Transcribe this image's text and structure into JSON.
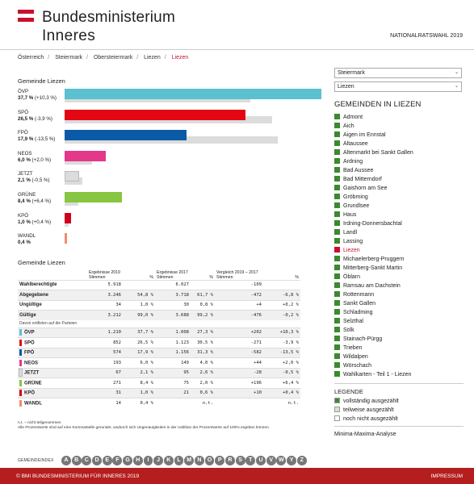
{
  "header": {
    "title_line1": "Bundesministerium",
    "title_line2": "Inneres",
    "election": "NATIONALRATSWAHL 2019",
    "brand_color": "#c8102e"
  },
  "breadcrumb": [
    "Österreich",
    "Steiermark",
    "Obersteiermark",
    "Liezen",
    "Liezen"
  ],
  "left_title": "Gemeinde Liezen",
  "chart_data": {
    "type": "bar",
    "orientation": "horizontal",
    "title": "Gemeinde Liezen",
    "xlim": [
      0,
      37.7
    ],
    "series": [
      {
        "name": "2019",
        "values": [
          37.7,
          26.5,
          17.9,
          6.0,
          2.1,
          8.4,
          1.0,
          0.4
        ]
      },
      {
        "name": "2017",
        "values": [
          27.3,
          30.5,
          31.3,
          4.0,
          2.6,
          2.0,
          0.6,
          0
        ]
      }
    ],
    "categories": [
      "ÖVP",
      "SPÖ",
      "FPÖ",
      "NEOS",
      "JETZT",
      "GRÜNE",
      "KPÖ",
      "WANDL"
    ],
    "labels": [
      {
        "pct": "37,7 %",
        "diff": "(+10,3 %)"
      },
      {
        "pct": "26,5 %",
        "diff": "(-3,9 %)"
      },
      {
        "pct": "17,9 %",
        "diff": "(-13,5 %)"
      },
      {
        "pct": "6,0 %",
        "diff": "(+2,0 %)"
      },
      {
        "pct": "2,1 %",
        "diff": "(-0,5 %)"
      },
      {
        "pct": "8,4 %",
        "diff": "(+6,4 %)"
      },
      {
        "pct": "1,0 %",
        "diff": "(+0,4 %)"
      },
      {
        "pct": "0,4 %",
        "diff": ""
      }
    ],
    "colors": [
      "#5bc0cf",
      "#e30613",
      "#0a5aa8",
      "#e4388a",
      "#dcdcdc",
      "#88c540",
      "#d0021b",
      "#f08a6c"
    ]
  },
  "table": {
    "title": "Gemeinde Liezen",
    "headers": {
      "e2019": "Ergebnisse 2019",
      "e2017": "Ergebnisse 2017",
      "cmp": "Vergleich 2019 – 2017",
      "stimmen": "Stimmen",
      "pct": "%"
    },
    "summary_rows": [
      {
        "label": "Wahlberechtigte",
        "s19": "5.918",
        "p19": "",
        "s17": "6.027",
        "p17": "",
        "ds": "-109",
        "dp": ""
      },
      {
        "label": "Abgegebene",
        "s19": "3.246",
        "p19": "54,8 %",
        "s17": "3.718",
        "p17": "61,7 %",
        "ds": "-472",
        "dp": "-6,8 %"
      },
      {
        "label": "Ungültige",
        "s19": "34",
        "p19": "1,0 %",
        "s17": "30",
        "p17": "0,8 %",
        "ds": "+4",
        "dp": "+0,2 %"
      },
      {
        "label": "Gültige",
        "s19": "3.212",
        "p19": "99,0 %",
        "s17": "3.688",
        "p17": "99,2 %",
        "ds": "-476",
        "dp": "-0,2 %"
      }
    ],
    "note": "Davon entfielen auf die Parteien",
    "party_rows": [
      {
        "label": "ÖVP",
        "color": "#5bc0cf",
        "s19": "1.210",
        "p19": "37,7 %",
        "s17": "1.008",
        "p17": "27,3 %",
        "ds": "+202",
        "dp": "+10,3 %"
      },
      {
        "label": "SPÖ",
        "color": "#e30613",
        "s19": "852",
        "p19": "26,5 %",
        "s17": "1.123",
        "p17": "30,5 %",
        "ds": "-271",
        "dp": "-3,9 %"
      },
      {
        "label": "FPÖ",
        "color": "#0a5aa8",
        "s19": "574",
        "p19": "17,9 %",
        "s17": "1.156",
        "p17": "31,3 %",
        "ds": "-582",
        "dp": "-13,5 %"
      },
      {
        "label": "NEOS",
        "color": "#e4388a",
        "s19": "193",
        "p19": "6,0 %",
        "s17": "149",
        "p17": "4,0 %",
        "ds": "+44",
        "dp": "+2,0 %"
      },
      {
        "label": "JETZT",
        "color": "#dcdcdc",
        "s19": "67",
        "p19": "2,1 %",
        "s17": "95",
        "p17": "2,6 %",
        "ds": "-28",
        "dp": "-0,5 %"
      },
      {
        "label": "GRÜNE",
        "color": "#88c540",
        "s19": "271",
        "p19": "8,4 %",
        "s17": "75",
        "p17": "2,0 %",
        "ds": "+196",
        "dp": "+6,4 %"
      },
      {
        "label": "KPÖ",
        "color": "#d0021b",
        "s19": "31",
        "p19": "1,0 %",
        "s17": "21",
        "p17": "0,6 %",
        "ds": "+10",
        "dp": "+0,4 %"
      },
      {
        "label": "WANDL",
        "color": "#f08a6c",
        "s19": "14",
        "p19": "0,4 %",
        "s17": "",
        "p17": "n.t.",
        "ds": "",
        "dp": "n.t."
      }
    ],
    "footnote1": "n.t. – nicht teilgenommen",
    "footnote2": "Alle Prozentwerte sind auf eine Kommastelle gerundet, wodurch sich Ungenauigkeiten in der Addition der Prozentwerte auf 100% ergeben können."
  },
  "alphabet": {
    "label": "GEMEINDEINDEX",
    "letters": [
      "A",
      "B",
      "C",
      "D",
      "E",
      "F",
      "G",
      "H",
      "I",
      "J",
      "K",
      "L",
      "M",
      "N",
      "O",
      "P",
      "R",
      "S",
      "T",
      "U",
      "V",
      "W",
      "Y",
      "Z"
    ]
  },
  "footer": {
    "left": "© BMI BUNDESMINISTERIUM FÜR INNERES 2019",
    "right": "IMPRESSUM"
  },
  "sidebar": {
    "select_state": "Steiermark",
    "select_district": "Liezen",
    "title": "GEMEINDEN IN LIEZEN",
    "active": "Liezen",
    "municipalities": [
      "Admont",
      "Aich",
      "Aigen im Ennstal",
      "Altaussee",
      "Altenmarkt bei Sankt Gallen",
      "Ardning",
      "Bad Aussee",
      "Bad Mitterndorf",
      "Gaishorn am See",
      "Gröbming",
      "Grundlsee",
      "Haus",
      "Irdning-Donnersbachtal",
      "Landl",
      "Lassing",
      "Liezen",
      "Michaelerberg-Pruggern",
      "Mitterberg-Sankt Martin",
      "Öblarn",
      "Ramsau am Dachstein",
      "Rottenmann",
      "Sankt Gallen",
      "Schladming",
      "Selzthal",
      "Sölk",
      "Stainach-Pürgg",
      "Trieben",
      "Wildalpen",
      "Wörschach",
      "Wahlkarten - Teil 1 - Liezen"
    ],
    "legend_title": "LEGENDE",
    "legend": [
      {
        "label": "vollständig ausgezählt",
        "color": "#3a8a2e"
      },
      {
        "label": "teilweise ausgezählt",
        "color": "#cfe6c8"
      },
      {
        "label": "noch nicht ausgezählt",
        "color": "#ffffff"
      }
    ],
    "minmax": "Minima-Maxima-Analyse"
  }
}
